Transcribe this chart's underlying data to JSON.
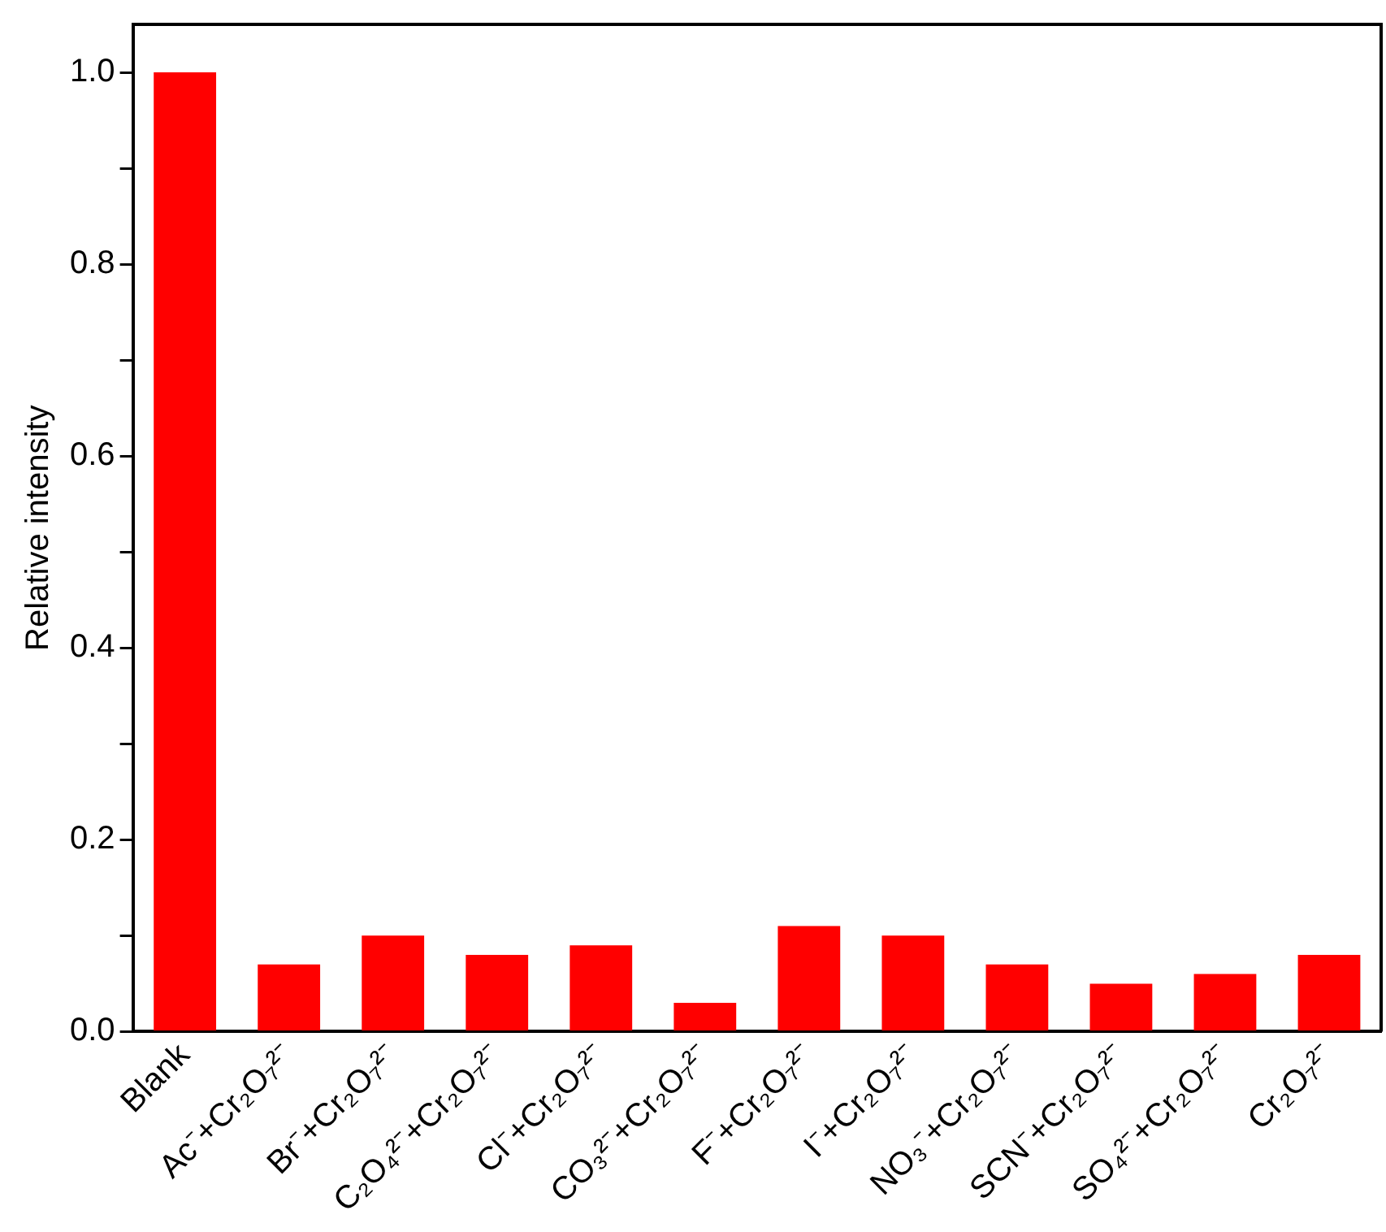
{
  "chart_data": {
    "type": "bar",
    "ylabel": "Relative intensity",
    "categories": [
      "Blank",
      "Ac⁻+Cr₂O₇²⁻",
      "Br⁻+Cr₂O₇²⁻",
      "C₂O₄²⁻+Cr₂O₇²⁻",
      "Cl⁻+Cr₂O₇²⁻",
      "CO₃²⁻+Cr₂O₇²⁻",
      "F⁻+Cr₂O₇²⁻",
      "I⁻+Cr₂O₇²⁻",
      "NO₃⁻+Cr₂O₇²⁻",
      "SCN⁻+Cr₂O₇²⁻",
      "SO₄²⁻+Cr₂O₇²⁻",
      "Cr₂O₇²⁻"
    ],
    "values": [
      1.0,
      0.07,
      0.1,
      0.08,
      0.09,
      0.03,
      0.11,
      0.1,
      0.07,
      0.05,
      0.06,
      0.08
    ],
    "color": "#ff0000",
    "ylim": [
      0,
      1.05
    ],
    "yticks": [
      {
        "value": 0,
        "label": "0.0"
      },
      {
        "value": 0.1,
        "label": null
      },
      {
        "value": 0.2,
        "label": "0.2"
      },
      {
        "value": 0.3,
        "label": null
      },
      {
        "value": 0.4,
        "label": "0.4"
      },
      {
        "value": 0.5,
        "label": null
      },
      {
        "value": 0.6,
        "label": "0.6"
      },
      {
        "value": 0.7,
        "label": null
      },
      {
        "value": 0.8,
        "label": "0.8"
      },
      {
        "value": 0.9,
        "label": null
      },
      {
        "value": 1.0,
        "label": "1.0"
      }
    ],
    "grid": false,
    "legend": false
  }
}
